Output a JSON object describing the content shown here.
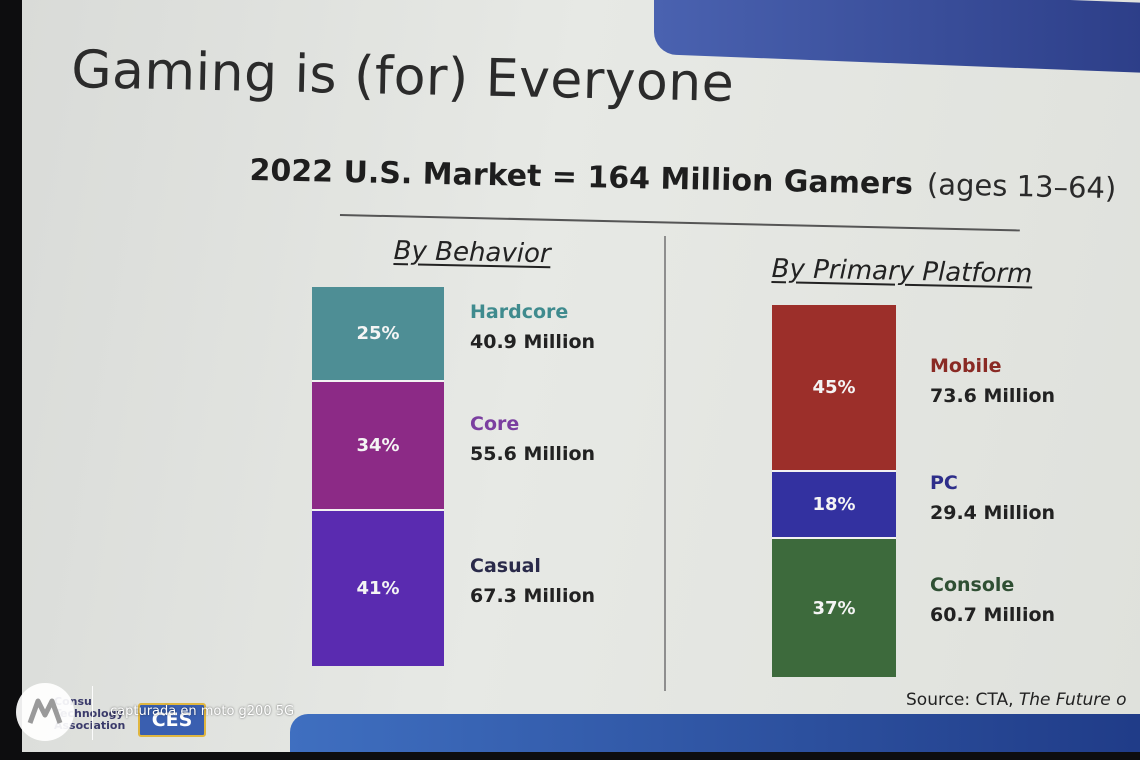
{
  "slide": {
    "title": "Gaming is (for) Everyone",
    "subtitle": "2022 U.S. Market = 164 Million Gamers",
    "subtitle_note": "(ages 13–64)",
    "source_prefix": "Source: CTA, ",
    "source_italic": "The Future o",
    "logos": {
      "cta_lines": [
        "Consu",
        "Technology",
        "Association"
      ],
      "ces": "CES"
    },
    "watermark": "capturada en moto g200 5G"
  },
  "chart_data": [
    {
      "type": "stacked-bar",
      "title": "By Behavior",
      "total_label": "164 Million Gamers",
      "segments": [
        {
          "name": "Hardcore",
          "percent": 25,
          "percent_label": "25%",
          "value_label": "40.9 Million",
          "value": 40.9,
          "color": "#4e8e95",
          "name_color": "#3f8b8e"
        },
        {
          "name": "Core",
          "percent": 34,
          "percent_label": "34%",
          "value_label": "55.6 Million",
          "value": 55.6,
          "color": "#8c2a86",
          "name_color": "#7b3fa0"
        },
        {
          "name": "Casual",
          "percent": 41,
          "percent_label": "41%",
          "value_label": "67.3 Million",
          "value": 67.3,
          "color": "#5a2bb0",
          "name_color": "#2a2a4a"
        }
      ]
    },
    {
      "type": "stacked-bar",
      "title": "By Primary Platform",
      "total_label": "164 Million Gamers",
      "segments": [
        {
          "name": "Mobile",
          "percent": 45,
          "percent_label": "45%",
          "value_label": "73.6 Million",
          "value": 73.6,
          "color": "#9c2f2a",
          "name_color": "#8a2a24"
        },
        {
          "name": "PC",
          "percent": 18,
          "percent_label": "18%",
          "value_label": "29.4 Million",
          "value": 29.4,
          "color": "#3331a0",
          "name_color": "#2e2e8a"
        },
        {
          "name": "Console",
          "percent": 37,
          "percent_label": "37%",
          "value_label": "60.7 Million",
          "value": 60.7,
          "color": "#3d6a3c",
          "name_color": "#2f4f33"
        }
      ]
    }
  ]
}
